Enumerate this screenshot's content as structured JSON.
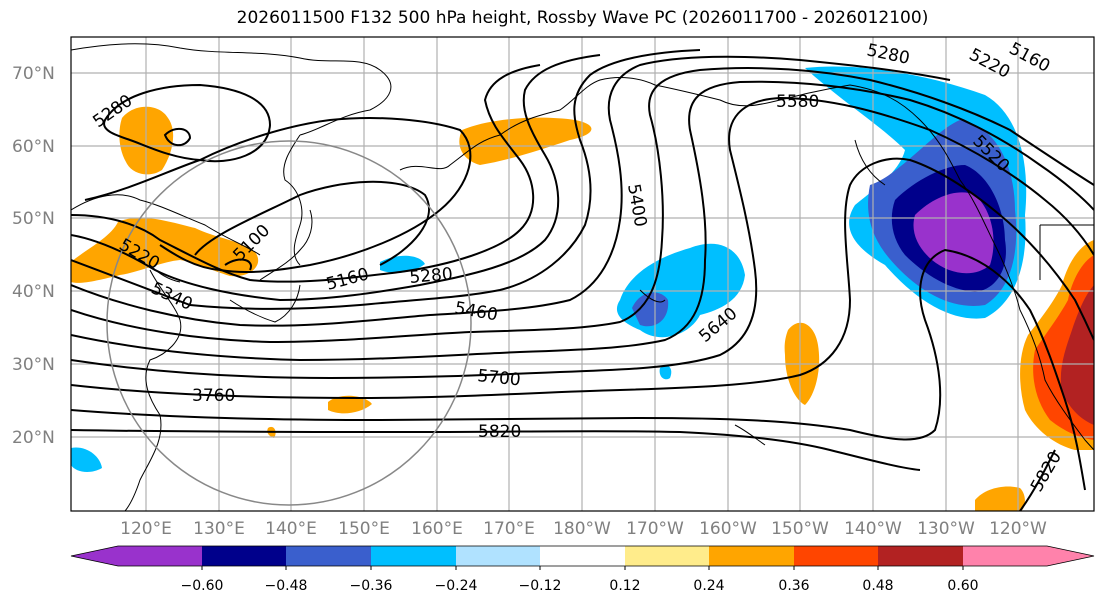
{
  "title": "2026011500 F132 500 hPa height, Rossby Wave PC (2026011700 - 2026012100)",
  "lat_labels": [
    "70°N",
    "60°N",
    "50°N",
    "40°N",
    "30°N",
    "20°N"
  ],
  "lon_labels": [
    "120°E",
    "130°E",
    "140°E",
    "150°E",
    "160°E",
    "170°E",
    "180°W",
    "170°W",
    "160°W",
    "150°W",
    "140°W",
    "130°W",
    "120°W"
  ],
  "contour_labels": [
    "5280",
    "5220",
    "5160",
    "5580",
    "5520",
    "5280",
    "5220",
    "5100",
    "5340",
    "5160",
    "5280",
    "5400",
    "5460",
    "5640",
    "5700",
    "3760",
    "5820",
    "5820"
  ],
  "colorbar": {
    "ticks": [
      "−0.60",
      "−0.48",
      "−0.36",
      "−0.24",
      "−0.12",
      "0.12",
      "0.24",
      "0.36",
      "0.48",
      "0.60"
    ],
    "colors": [
      "#9932cc",
      "#00008b",
      "#3a5fcd",
      "#00bfff",
      "#b0e2ff",
      "#ffffff",
      "#ffec8b",
      "#ffa500",
      "#ff4500",
      "#b22222",
      "#ff82ab"
    ]
  }
}
